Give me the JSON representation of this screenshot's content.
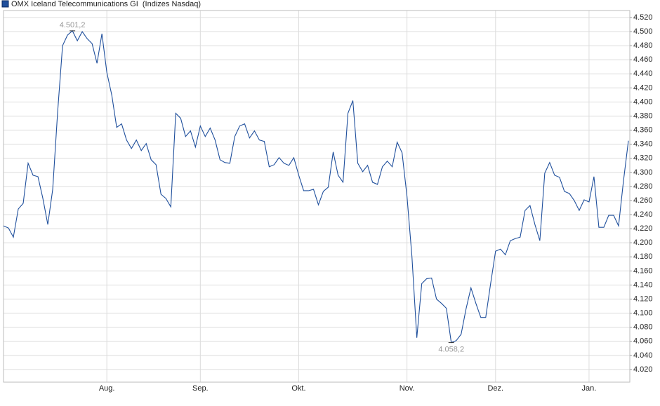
{
  "chart_data": {
    "type": "line",
    "series": [
      {
        "name": "OMX Iceland Telecommunications GI  (Indizes Nasdaq)",
        "color": "#1f4f9c",
        "values": [
          4224,
          4221,
          4208,
          4248,
          4256,
          4313,
          4296,
          4294,
          4263,
          4226,
          4276,
          4386,
          4480,
          4495,
          4501.2,
          4487,
          4500,
          4490,
          4483,
          4455,
          4497,
          4442,
          4410,
          4364,
          4369,
          4346,
          4334,
          4346,
          4331,
          4341,
          4318,
          4311,
          4269,
          4263,
          4251,
          4384,
          4377,
          4351,
          4359,
          4336,
          4366,
          4351,
          4363,
          4346,
          4318,
          4314,
          4313,
          4351,
          4366,
          4369,
          4349,
          4359,
          4346,
          4344,
          4308,
          4311,
          4321,
          4313,
          4310,
          4321,
          4296,
          4274,
          4274,
          4276,
          4254,
          4273,
          4279,
          4329,
          4296,
          4286,
          4384,
          4402,
          4313,
          4301,
          4310,
          4286,
          4283,
          4308,
          4316,
          4308,
          4343,
          4328,
          4266,
          4181,
          4065,
          4142,
          4149,
          4150,
          4120,
          4114,
          4107,
          4058.2,
          4061,
          4070,
          4106,
          4136,
          4114,
          4094,
          4094,
          4142,
          4188,
          4191,
          4183,
          4203,
          4206,
          4208,
          4246,
          4253,
          4226,
          4203,
          4299,
          4314,
          4296,
          4293,
          4273,
          4270,
          4260,
          4246,
          4261,
          4258,
          4294,
          4222,
          4222,
          4239,
          4239,
          4224,
          4288,
          4345
        ],
        "value_labels": [
          null,
          null,
          null,
          null,
          null,
          null,
          null,
          null,
          null,
          null,
          null,
          null,
          null,
          null,
          "4.501,2",
          null,
          null,
          null,
          null,
          null,
          null,
          null,
          null,
          null,
          null,
          null,
          null,
          null,
          null,
          null,
          null,
          null,
          null,
          null,
          null,
          null,
          null,
          null,
          null,
          null,
          null,
          null,
          null,
          null,
          null,
          null,
          null,
          null,
          null,
          null,
          null,
          null,
          null,
          null,
          null,
          null,
          null,
          null,
          null,
          null,
          null,
          null,
          null,
          null,
          null,
          null,
          null,
          null,
          null,
          null,
          null,
          null,
          null,
          null,
          null,
          null,
          null,
          null,
          null,
          null,
          null,
          null,
          null,
          null,
          null,
          null,
          null,
          null,
          null,
          null,
          null,
          "4.058,2",
          null,
          null,
          null,
          null,
          null,
          null,
          null,
          null,
          null,
          null,
          null,
          null,
          null,
          null,
          null,
          null,
          null,
          null,
          null,
          null,
          null,
          null,
          null,
          null,
          null,
          null,
          null,
          null,
          null,
          null,
          null,
          null,
          null,
          null,
          null,
          null
        ]
      }
    ],
    "categories": [
      null,
      null,
      null,
      null,
      null,
      null,
      null,
      null,
      null,
      null,
      null,
      null,
      null,
      null,
      null,
      null,
      null,
      null,
      null,
      null,
      null,
      "Aug.",
      null,
      null,
      null,
      null,
      null,
      null,
      null,
      null,
      null,
      null,
      null,
      null,
      null,
      null,
      null,
      null,
      null,
      null,
      "Sep.",
      null,
      null,
      null,
      null,
      null,
      null,
      null,
      null,
      null,
      null,
      null,
      null,
      null,
      null,
      null,
      null,
      null,
      null,
      null,
      "Okt.",
      null,
      null,
      null,
      null,
      null,
      null,
      null,
      null,
      null,
      null,
      null,
      null,
      null,
      null,
      null,
      null,
      null,
      null,
      null,
      null,
      null,
      "Nov.",
      null,
      null,
      null,
      null,
      null,
      null,
      null,
      null,
      null,
      null,
      null,
      null,
      null,
      null,
      null,
      null,
      null,
      "Dez.",
      null,
      null,
      null,
      null,
      null,
      null,
      null,
      null,
      null,
      null,
      null,
      null,
      null,
      null,
      null,
      null,
      null,
      null,
      "Jan.",
      null,
      null,
      null,
      null,
      null,
      null,
      null,
      null
    ],
    "ylim": [
      4002,
      4530
    ],
    "yticks": [
      {
        "value": 4020,
        "label": "4.020"
      },
      {
        "value": 4040,
        "label": "4.040"
      },
      {
        "value": 4060,
        "label": "4.060"
      },
      {
        "value": 4080,
        "label": "4.080"
      },
      {
        "value": 4100,
        "label": "4.100"
      },
      {
        "value": 4120,
        "label": "4.120"
      },
      {
        "value": 4140,
        "label": "4.140"
      },
      {
        "value": 4160,
        "label": "4.160"
      },
      {
        "value": 4180,
        "label": "4.180"
      },
      {
        "value": 4200,
        "label": "4.200"
      },
      {
        "value": 4220,
        "label": "4.220"
      },
      {
        "value": 4240,
        "label": "4.240"
      },
      {
        "value": 4260,
        "label": "4.260"
      },
      {
        "value": 4280,
        "label": "4.280"
      },
      {
        "value": 4300,
        "label": "4.300"
      },
      {
        "value": 4320,
        "label": "4.320"
      },
      {
        "value": 4340,
        "label": "4.340"
      },
      {
        "value": 4360,
        "label": "4.360"
      },
      {
        "value": 4380,
        "label": "4.380"
      },
      {
        "value": 4400,
        "label": "4.400"
      },
      {
        "value": 4420,
        "label": "4.420"
      },
      {
        "value": 4440,
        "label": "4.440"
      },
      {
        "value": 4460,
        "label": "4.460"
      },
      {
        "value": 4480,
        "label": "4.480"
      },
      {
        "value": 4500,
        "label": "4.500"
      },
      {
        "value": 4520,
        "label": "4.520"
      }
    ],
    "grid": true
  }
}
